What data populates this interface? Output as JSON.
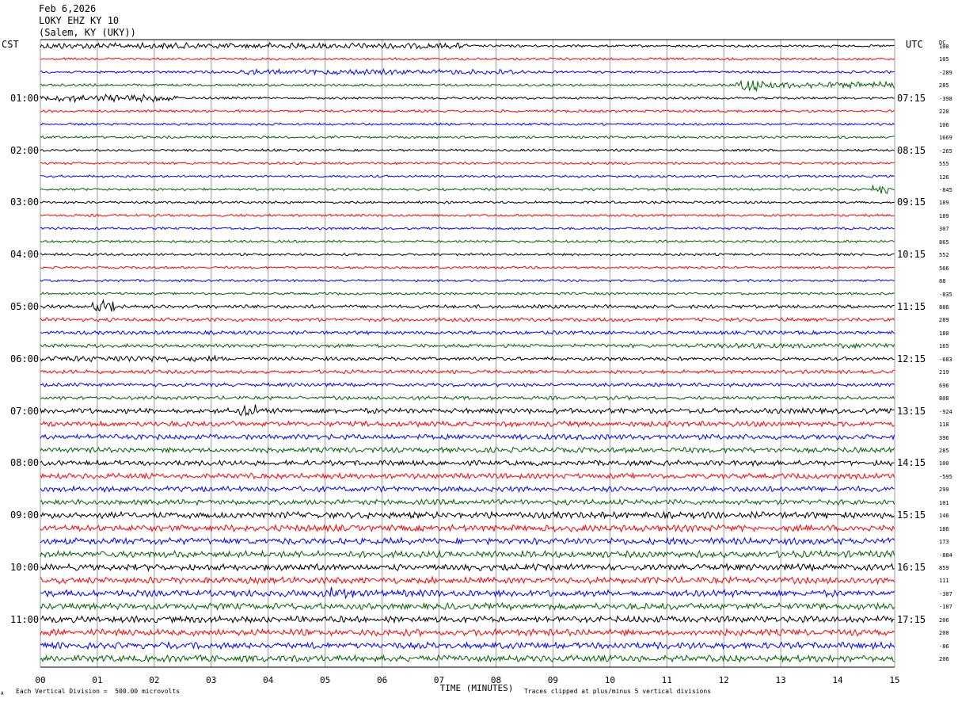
{
  "header": {
    "date": "Feb 6,2026",
    "station": "LOKY EHZ KY 10",
    "location": "(Salem, KY (UKY))"
  },
  "left_tz": "CST",
  "right_tz": "UTC",
  "dc_label": "DC",
  "footer": {
    "scale_note": "Each Vertical Division =  500.00 microvolts",
    "clip_note": "Traces clipped at plus/minus 5 vertical divisions",
    "corner_mark": "A"
  },
  "chart_data": {
    "type": "line",
    "title": "",
    "xlabel": "TIME (MINUTES)",
    "ylabel": "",
    "xlim": [
      0,
      15
    ],
    "x_ticks": [
      "00",
      "01",
      "02",
      "03",
      "04",
      "05",
      "06",
      "07",
      "08",
      "09",
      "10",
      "11",
      "12",
      "13",
      "14",
      "15"
    ],
    "grid": true,
    "trace_colors": [
      "#000000",
      "#ff0000",
      "#0000ff",
      "#006400"
    ],
    "rows": 48,
    "left_hour_labels": [
      "01:00",
      "02:00",
      "03:00",
      "04:00",
      "05:00",
      "06:00",
      "07:00",
      "08:00",
      "09:00",
      "10:00",
      "11:00"
    ],
    "right_hour_labels": [
      "07:15",
      "08:15",
      "09:15",
      "10:15",
      "11:15",
      "12:15",
      "13:15",
      "14:15",
      "15:15",
      "16:15",
      "17:15"
    ],
    "dc_offsets": [
      "100",
      "105",
      "-289",
      "285",
      "-398",
      "220",
      "106",
      "1669",
      "-265",
      "555",
      "126",
      "-845",
      "189",
      "189",
      "307",
      "865",
      "552",
      "566",
      "88",
      "-835",
      "886",
      "289",
      "180",
      "165",
      "-683",
      "219",
      "696",
      "808",
      "-924",
      "118",
      "396",
      "285",
      "100",
      "-595",
      "299",
      "101",
      "146",
      "186",
      "173",
      "-884",
      "859",
      "111",
      "-307",
      "-187",
      "206",
      "200",
      "-86",
      "206"
    ]
  }
}
